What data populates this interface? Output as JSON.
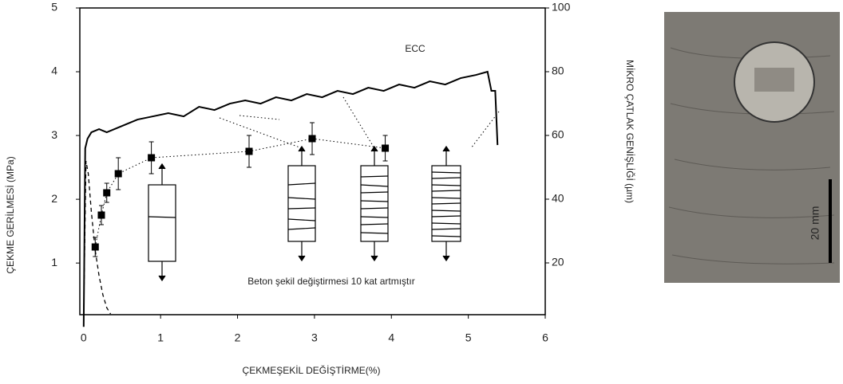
{
  "chart_data": {
    "type": "line",
    "xlabel": "ÇEKMEŞEKİL DEĞİŞTİRME(%)",
    "ylabel": "ÇEKME GERİLMESİ (MPa)",
    "y2label": "MİKRO ÇATLAK GENİŞLİĞİ (µm)",
    "annotation": "Beton şekil değiştirmesi 10 kat artmıştır",
    "xlim": [
      -0.05,
      6
    ],
    "xticks": [
      0,
      1,
      2,
      3,
      4,
      5,
      6
    ],
    "ylim": [
      0.19,
      5
    ],
    "yticks": [
      1,
      2,
      3,
      4,
      5
    ],
    "y2lim": [
      3.75,
      100
    ],
    "y2ticks": [
      20,
      40,
      60,
      80,
      100
    ],
    "series": [
      {
        "name": "ECC",
        "color": "#000000",
        "style": "solid",
        "x": [
          0,
          0.02,
          0.05,
          0.1,
          0.2,
          0.3,
          0.5,
          0.7,
          0.9,
          1.1,
          1.3,
          1.5,
          1.7,
          1.9,
          2.1,
          2.3,
          2.5,
          2.7,
          2.9,
          3.1,
          3.3,
          3.5,
          3.7,
          3.9,
          4.1,
          4.3,
          4.5,
          4.7,
          4.9,
          5.1,
          5.25,
          5.3,
          5.35,
          5.38
        ],
        "values": [
          0,
          2.8,
          2.95,
          3.05,
          3.1,
          3.05,
          3.15,
          3.25,
          3.3,
          3.35,
          3.3,
          3.45,
          3.4,
          3.5,
          3.55,
          3.5,
          3.6,
          3.55,
          3.65,
          3.6,
          3.7,
          3.65,
          3.75,
          3.7,
          3.8,
          3.75,
          3.85,
          3.8,
          3.9,
          3.95,
          4.0,
          3.7,
          3.7,
          2.85
        ]
      },
      {
        "color": "#000000",
        "style": "dashed",
        "x": [
          0,
          0.03,
          0.06,
          0.1,
          0.15,
          0.2,
          0.25,
          0.3,
          0.35
        ],
        "values": [
          0.19,
          2.6,
          2.4,
          1.8,
          1.2,
          0.8,
          0.5,
          0.3,
          0.2
        ]
      },
      {
        "color": "#000000",
        "style": "markers",
        "axis": "y2",
        "x": [
          0.15,
          0.23,
          0.3,
          0.45,
          0.88,
          2.15,
          2.97,
          3.92
        ],
        "values": [
          25,
          35,
          42,
          48,
          53,
          55,
          59,
          56
        ],
        "errors": [
          3,
          3,
          3,
          5,
          5,
          5,
          5,
          4
        ]
      }
    ]
  },
  "photo": {
    "scale_label": "20 mm"
  }
}
